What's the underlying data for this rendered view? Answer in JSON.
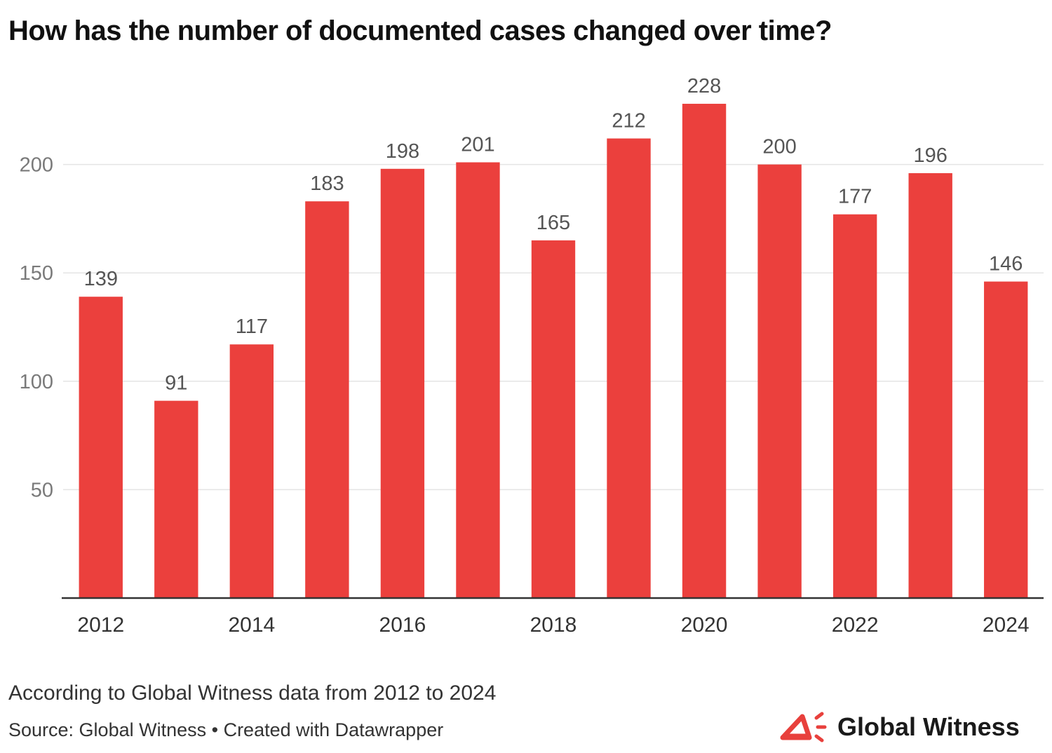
{
  "title": "How has the number of documented cases changed over time?",
  "note": "According to Global Witness data from 2012 to 2024",
  "source": "Source: Global Witness • Created with Datawrapper",
  "logo": {
    "text": "Global Witness",
    "icon": "megaphone-icon",
    "color": "#e8403c"
  },
  "colors": {
    "bar": "#eb403d",
    "grid": "#e4e4e4",
    "baseline": "#333333"
  },
  "chart_data": {
    "type": "bar",
    "categories": [
      "2012",
      "2013",
      "2014",
      "2015",
      "2016",
      "2017",
      "2018",
      "2019",
      "2020",
      "2021",
      "2022",
      "2023",
      "2024"
    ],
    "values": [
      139,
      91,
      117,
      183,
      198,
      201,
      165,
      212,
      228,
      200,
      177,
      196,
      146
    ],
    "x_tick_labels": [
      "2012",
      "2014",
      "2016",
      "2018",
      "2020",
      "2022",
      "2024"
    ],
    "y_ticks": [
      50,
      100,
      150,
      200
    ],
    "ylim": [
      0,
      250
    ],
    "grid": true,
    "data_labels": true,
    "legend": "none"
  }
}
